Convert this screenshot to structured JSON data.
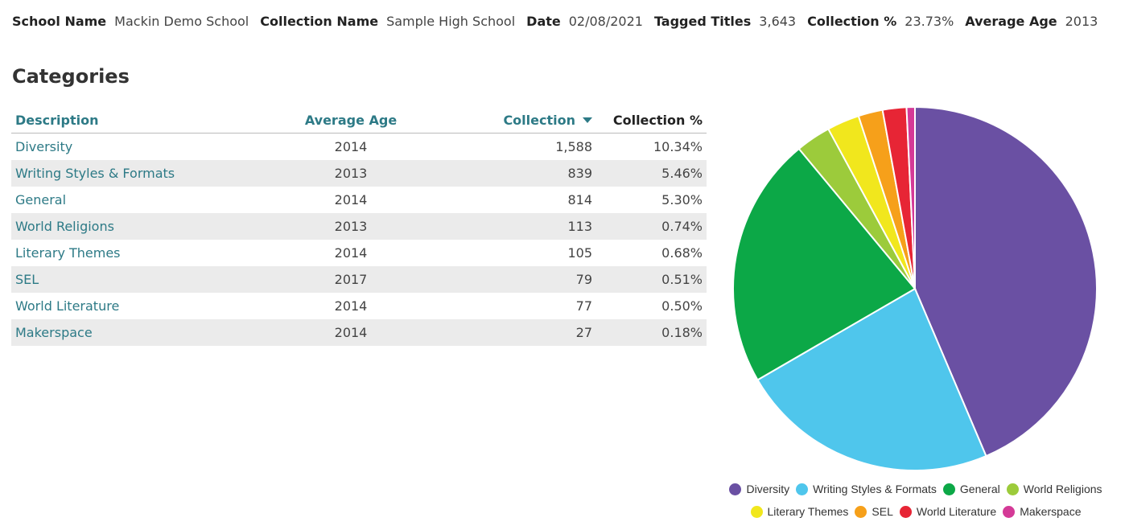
{
  "header": {
    "school_name_label": "School Name",
    "school_name": "Mackin Demo School",
    "collection_name_label": "Collection Name",
    "collection_name": "Sample High School",
    "date_label": "Date",
    "date": "02/08/2021",
    "tagged_titles_label": "Tagged Titles",
    "tagged_titles": "3,643",
    "collection_pct_label": "Collection %",
    "collection_pct": "23.73%",
    "average_age_label": "Average Age",
    "average_age": "2013"
  },
  "section_title": "Categories",
  "table": {
    "columns": [
      "Description",
      "Average Age",
      "Collection",
      "Collection %"
    ],
    "sorted_by": "Collection",
    "rows": [
      {
        "description": "Diversity",
        "average_age": "2014",
        "collection": "1,588",
        "collection_pct": "10.34%"
      },
      {
        "description": "Writing Styles & Formats",
        "average_age": "2013",
        "collection": "839",
        "collection_pct": "5.46%"
      },
      {
        "description": "General",
        "average_age": "2014",
        "collection": "814",
        "collection_pct": "5.30%"
      },
      {
        "description": "World Religions",
        "average_age": "2013",
        "collection": "113",
        "collection_pct": "0.74%"
      },
      {
        "description": "Literary Themes",
        "average_age": "2014",
        "collection": "105",
        "collection_pct": "0.68%"
      },
      {
        "description": "SEL",
        "average_age": "2017",
        "collection": "79",
        "collection_pct": "0.51%"
      },
      {
        "description": "World Literature",
        "average_age": "2014",
        "collection": "77",
        "collection_pct": "0.50%"
      },
      {
        "description": "Makerspace",
        "average_age": "2014",
        "collection": "27",
        "collection_pct": "0.18%"
      }
    ]
  },
  "chart_data": {
    "type": "pie",
    "categories": [
      "Diversity",
      "Writing Styles & Formats",
      "General",
      "World Religions",
      "Literary Themes",
      "SEL",
      "World Literature",
      "Makerspace"
    ],
    "values": [
      1588,
      839,
      814,
      113,
      105,
      79,
      77,
      27
    ],
    "colors": [
      "#6a50a3",
      "#4fc6ec",
      "#0ca847",
      "#9ccb3b",
      "#f1e71d",
      "#f6a01a",
      "#e72535",
      "#d43a97"
    ],
    "legend_position": "bottom"
  }
}
